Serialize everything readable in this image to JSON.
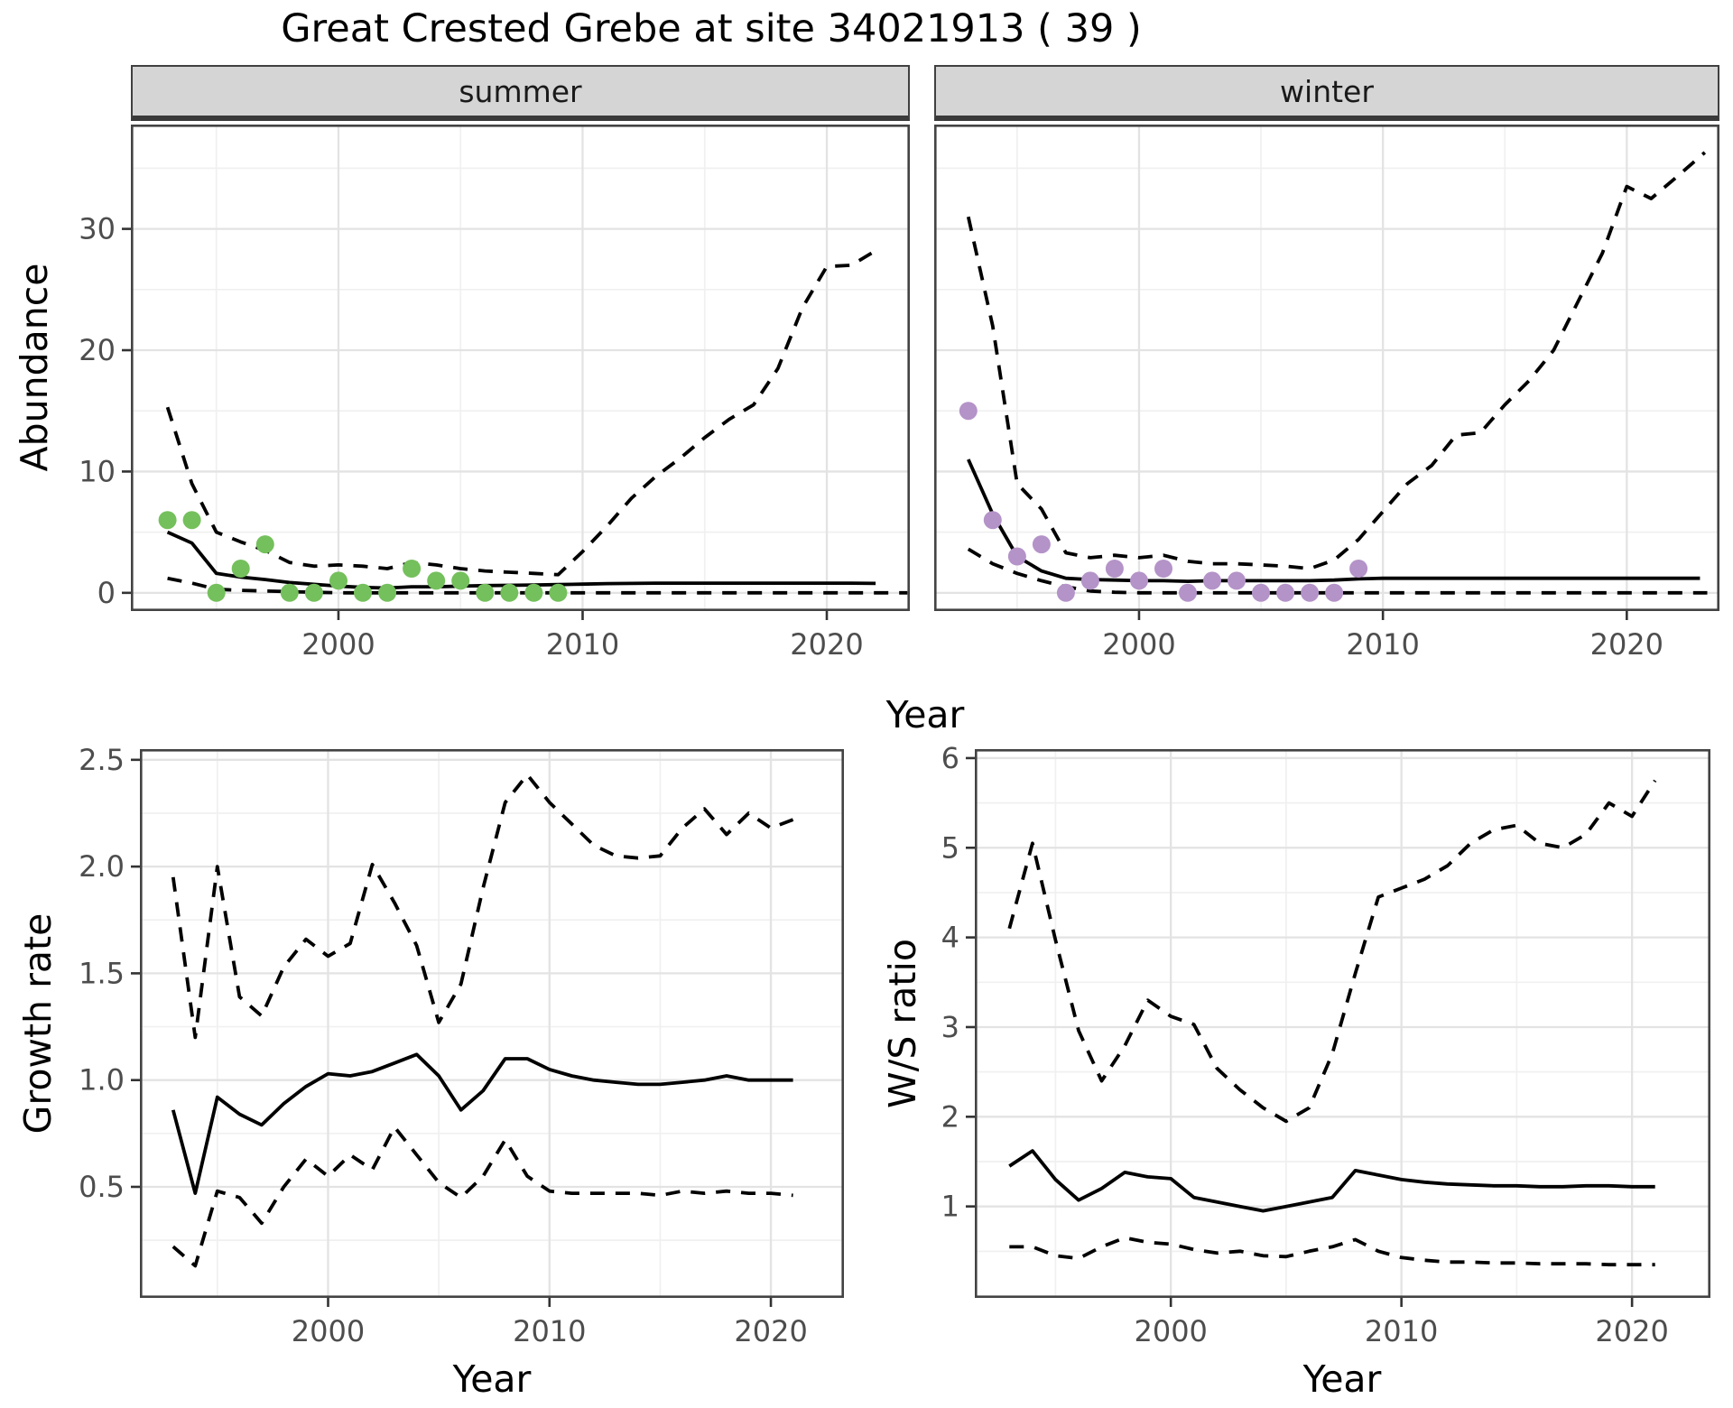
{
  "title": "Great Crested Grebe at site 34021913 ( 39 )",
  "axis_labels": {
    "abundance": "Abundance",
    "year": "Year",
    "growth": "Growth rate",
    "ws": "W/S ratio"
  },
  "facets": {
    "summer": "summer",
    "winter": "winter"
  },
  "colors": {
    "summer_points": "#74c05c",
    "winter_points": "#b493c8",
    "line": "#000000",
    "grid_major": "#e3e3e3",
    "grid_minor": "#f0f0f0",
    "strip_bg": "#d5d5d5",
    "border": "#434343",
    "tick_text": "#4d4d4d"
  },
  "chart_data": [
    {
      "id": "summer",
      "type": "line",
      "facet": "summer",
      "xlabel": "Year",
      "ylabel": "Abundance",
      "x_range": [
        1991.5,
        2023.4
      ],
      "y_range": [
        -1.5,
        38.6
      ],
      "x_ticks": [
        2000,
        2010,
        2020
      ],
      "x_tick_labels": [
        "2000",
        "2010",
        "2020"
      ],
      "x_minor": [
        1995,
        2005,
        2015
      ],
      "y_ticks": [
        0,
        10,
        20,
        30
      ],
      "y_tick_labels": [
        "0",
        "10",
        "20",
        "30"
      ],
      "y_minor": [
        5,
        15,
        25,
        35
      ],
      "series": [
        {
          "name": "upper-ci",
          "type": "line",
          "dashed": true,
          "color": "#000000",
          "x": [
            1993,
            1994,
            1995,
            1996,
            1997,
            1998,
            1999,
            2000,
            2001,
            2002,
            2003,
            2004,
            2005,
            2006,
            2007,
            2008,
            2009,
            2010,
            2011,
            2012,
            2013,
            2014,
            2015,
            2016,
            2017,
            2018,
            2019,
            2020,
            2021,
            2022
          ],
          "y": [
            15.3,
            9.0,
            5.0,
            4.2,
            3.5,
            2.5,
            2.2,
            2.3,
            2.2,
            2.0,
            2.5,
            2.3,
            2.0,
            1.8,
            1.7,
            1.6,
            1.5,
            3.4,
            5.5,
            7.8,
            9.6,
            11.1,
            12.8,
            14.3,
            15.5,
            18.5,
            23.5,
            26.9,
            27.0,
            28.2
          ]
        },
        {
          "name": "lower-ci",
          "type": "line",
          "dashed": true,
          "color": "#000000",
          "x": [
            1993,
            1994,
            1995,
            1996,
            1997,
            1998,
            1999,
            2000,
            2001,
            2002,
            2003,
            2004,
            2005,
            2006,
            2007,
            2008,
            2009,
            2010,
            2011,
            2012,
            2013,
            2014,
            2015,
            2016,
            2017,
            2018,
            2019,
            2020,
            2021,
            2022,
            2023.3
          ],
          "y": [
            1.2,
            0.8,
            0.3,
            0.2,
            0.15,
            0.1,
            0.05,
            0,
            0,
            0,
            0,
            0,
            0,
            0,
            0,
            0,
            0,
            0,
            0,
            0,
            0,
            0,
            0,
            0,
            0,
            0,
            0,
            0,
            0,
            0,
            0
          ]
        },
        {
          "name": "fitted",
          "type": "line",
          "dashed": false,
          "color": "#000000",
          "x": [
            1993,
            1994,
            1995,
            1996,
            1997,
            1998,
            1999,
            2000,
            2001,
            2002,
            2003,
            2004,
            2005,
            2006,
            2007,
            2008,
            2009,
            2010,
            2011,
            2012,
            2013,
            2014,
            2015,
            2016,
            2017,
            2018,
            2019,
            2020,
            2021,
            2022
          ],
          "y": [
            5.0,
            4.1,
            1.6,
            1.3,
            1.1,
            0.85,
            0.7,
            0.55,
            0.45,
            0.4,
            0.5,
            0.5,
            0.55,
            0.6,
            0.62,
            0.65,
            0.68,
            0.72,
            0.76,
            0.78,
            0.8,
            0.8,
            0.8,
            0.8,
            0.8,
            0.8,
            0.8,
            0.8,
            0.8,
            0.78
          ]
        },
        {
          "name": "observed",
          "type": "points",
          "color": "#74c05c",
          "x": [
            1993,
            1994,
            1995,
            1996,
            1997,
            1998,
            1999,
            2000,
            2001,
            2002,
            2003,
            2004,
            2005,
            2006,
            2007,
            2008,
            2009
          ],
          "y": [
            6,
            6,
            0,
            2,
            4,
            0,
            0,
            1,
            0,
            0,
            2,
            1,
            1,
            0,
            0,
            0,
            0
          ]
        }
      ]
    },
    {
      "id": "winter",
      "type": "line",
      "facet": "winter",
      "xlabel": "Year",
      "ylabel": "Abundance",
      "x_range": [
        1991.6,
        2023.8
      ],
      "y_range": [
        -1.5,
        38.6
      ],
      "x_ticks": [
        2000,
        2010,
        2020
      ],
      "x_tick_labels": [
        "2000",
        "2010",
        "2020"
      ],
      "x_minor": [
        1995,
        2005,
        2015
      ],
      "y_ticks": [
        0,
        10,
        20,
        30
      ],
      "y_tick_labels": [],
      "y_minor": [
        5,
        15,
        25,
        35
      ],
      "series": [
        {
          "name": "upper-ci",
          "type": "line",
          "dashed": true,
          "color": "#000000",
          "x": [
            1993,
            1994,
            1995,
            1996,
            1997,
            1998,
            1999,
            2000,
            2001,
            2002,
            2003,
            2004,
            2005,
            2006,
            2007,
            2008,
            2009,
            2010,
            2011,
            2012,
            2013,
            2014,
            2015,
            2016,
            2017,
            2018,
            2019,
            2020,
            2021,
            2022,
            2023.2
          ],
          "y": [
            31,
            22,
            9,
            6.9,
            3.3,
            2.9,
            3.1,
            2.9,
            3.1,
            2.6,
            2.4,
            2.4,
            2.3,
            2.2,
            2.0,
            2.7,
            4.4,
            6.7,
            9.0,
            10.5,
            13.0,
            13.2,
            15.5,
            17.5,
            20.0,
            24.0,
            28.0,
            33.5,
            32.5,
            34.2,
            36.3
          ]
        },
        {
          "name": "lower-ci",
          "type": "line",
          "dashed": true,
          "color": "#000000",
          "x": [
            1993,
            1994,
            1995,
            1996,
            1997,
            1998,
            1999,
            2000,
            2001,
            2002,
            2003,
            2004,
            2005,
            2006,
            2007,
            2008,
            2009,
            2010,
            2011,
            2012,
            2013,
            2014,
            2015,
            2016,
            2017,
            2018,
            2019,
            2020,
            2021,
            2022,
            2023.3
          ],
          "y": [
            3.6,
            2.4,
            1.6,
            1.0,
            0.5,
            0.15,
            0.05,
            0,
            0,
            0,
            0,
            0,
            0,
            0,
            0,
            0,
            0,
            0,
            0,
            0,
            0,
            0,
            0,
            0,
            0,
            0,
            0,
            0,
            0,
            0,
            0
          ]
        },
        {
          "name": "fitted",
          "type": "line",
          "dashed": false,
          "color": "#000000",
          "x": [
            1993,
            1994,
            1995,
            1996,
            1997,
            1998,
            1999,
            2000,
            2001,
            2002,
            2003,
            2004,
            2005,
            2006,
            2007,
            2008,
            2009,
            2010,
            2011,
            2012,
            2013,
            2014,
            2015,
            2016,
            2017,
            2018,
            2019,
            2020,
            2021,
            2022,
            2023
          ],
          "y": [
            11,
            6.5,
            3.0,
            1.8,
            1.2,
            1.1,
            1.05,
            1.0,
            1.0,
            0.95,
            1.0,
            1.0,
            1.0,
            1.0,
            1.0,
            1.05,
            1.15,
            1.2,
            1.2,
            1.2,
            1.2,
            1.2,
            1.2,
            1.2,
            1.2,
            1.2,
            1.2,
            1.2,
            1.2,
            1.2,
            1.2
          ]
        },
        {
          "name": "observed",
          "type": "points",
          "color": "#b493c8",
          "x": [
            1993,
            1994,
            1995,
            1996,
            1997,
            1998,
            1999,
            2000,
            2001,
            2002,
            2003,
            2004,
            2005,
            2006,
            2007,
            2008,
            2009
          ],
          "y": [
            15,
            6,
            3,
            4,
            0,
            1,
            2,
            1,
            2,
            0,
            1,
            1,
            0,
            0,
            0,
            0,
            2
          ]
        }
      ]
    },
    {
      "id": "growth",
      "type": "line",
      "facet": null,
      "xlabel": "Year",
      "ylabel": "Growth rate",
      "x_range": [
        1991.5,
        2023.3
      ],
      "y_range": [
        -0.02,
        2.55
      ],
      "x_ticks": [
        2000,
        2010,
        2020
      ],
      "x_tick_labels": [
        "2000",
        "2010",
        "2020"
      ],
      "x_minor": [
        1995,
        2005,
        2015
      ],
      "y_ticks": [
        0.5,
        1.0,
        1.5,
        2.0,
        2.5
      ],
      "y_tick_labels": [
        "0.5",
        "1.0",
        "1.5",
        "2.0",
        "2.5"
      ],
      "y_minor": [
        0.25,
        0.75,
        1.25,
        1.75,
        2.25
      ],
      "series": [
        {
          "name": "upper-ci",
          "type": "line",
          "dashed": true,
          "color": "#000000",
          "x": [
            1993,
            1994,
            1995,
            1996,
            1997,
            1998,
            1999,
            2000,
            2001,
            2002,
            2003,
            2004,
            2005,
            2006,
            2007,
            2008,
            2009,
            2010,
            2011,
            2012,
            2013,
            2014,
            2015,
            2016,
            2017,
            2018,
            2019,
            2020,
            2021
          ],
          "y": [
            1.95,
            1.2,
            2.0,
            1.39,
            1.3,
            1.53,
            1.66,
            1.58,
            1.64,
            2.01,
            1.83,
            1.63,
            1.27,
            1.45,
            1.9,
            2.3,
            2.43,
            2.3,
            2.2,
            2.1,
            2.05,
            2.04,
            2.05,
            2.18,
            2.27,
            2.15,
            2.25,
            2.18,
            2.22
          ]
        },
        {
          "name": "lower-ci",
          "type": "line",
          "dashed": true,
          "color": "#000000",
          "x": [
            1993,
            1994,
            1995,
            1996,
            1997,
            1998,
            1999,
            2000,
            2001,
            2002,
            2003,
            2004,
            2005,
            2006,
            2007,
            2008,
            2009,
            2010,
            2011,
            2012,
            2013,
            2014,
            2015,
            2016,
            2017,
            2018,
            2019,
            2020,
            2021
          ],
          "y": [
            0.22,
            0.13,
            0.48,
            0.45,
            0.33,
            0.5,
            0.63,
            0.55,
            0.65,
            0.58,
            0.78,
            0.65,
            0.52,
            0.45,
            0.55,
            0.72,
            0.55,
            0.48,
            0.47,
            0.47,
            0.47,
            0.47,
            0.46,
            0.48,
            0.47,
            0.48,
            0.47,
            0.47,
            0.46
          ]
        },
        {
          "name": "fitted",
          "type": "line",
          "dashed": false,
          "color": "#000000",
          "x": [
            1993,
            1994,
            1995,
            1996,
            1997,
            1998,
            1999,
            2000,
            2001,
            2002,
            2003,
            2004,
            2005,
            2006,
            2007,
            2008,
            2009,
            2010,
            2011,
            2012,
            2013,
            2014,
            2015,
            2016,
            2017,
            2018,
            2019,
            2020,
            2021
          ],
          "y": [
            0.86,
            0.47,
            0.92,
            0.84,
            0.79,
            0.89,
            0.97,
            1.03,
            1.02,
            1.04,
            1.08,
            1.12,
            1.02,
            0.86,
            0.95,
            1.1,
            1.1,
            1.05,
            1.02,
            1.0,
            0.99,
            0.98,
            0.98,
            0.99,
            1.0,
            1.02,
            1.0,
            1.0,
            1.0
          ]
        }
      ]
    },
    {
      "id": "ws",
      "type": "line",
      "facet": null,
      "xlabel": "Year",
      "ylabel": "W/S ratio",
      "x_range": [
        1991.5,
        2023.4
      ],
      "y_range": [
        -0.02,
        6.1
      ],
      "x_ticks": [
        2000,
        2010,
        2020
      ],
      "x_tick_labels": [
        "2000",
        "2010",
        "2020"
      ],
      "x_minor": [
        1995,
        2005,
        2015
      ],
      "y_ticks": [
        1,
        2,
        3,
        4,
        5,
        6
      ],
      "y_tick_labels": [
        "1",
        "2",
        "3",
        "4",
        "5",
        "6"
      ],
      "y_minor": [
        0.5,
        1.5,
        2.5,
        3.5,
        4.5,
        5.5
      ],
      "series": [
        {
          "name": "upper-ci",
          "type": "line",
          "dashed": true,
          "color": "#000000",
          "x": [
            1993,
            1994,
            1995,
            1996,
            1997,
            1998,
            1999,
            2000,
            2001,
            2002,
            2003,
            2004,
            2005,
            2006,
            2007,
            2008,
            2009,
            2010,
            2011,
            2012,
            2013,
            2014,
            2015,
            2016,
            2017,
            2018,
            2019,
            2020,
            2021
          ],
          "y": [
            4.1,
            5.05,
            3.97,
            2.96,
            2.4,
            2.79,
            3.3,
            3.12,
            3.03,
            2.54,
            2.3,
            2.1,
            1.95,
            2.1,
            2.7,
            3.6,
            4.45,
            4.55,
            4.65,
            4.8,
            5.05,
            5.2,
            5.25,
            5.05,
            5.0,
            5.15,
            5.5,
            5.35,
            5.75
          ]
        },
        {
          "name": "lower-ci",
          "type": "line",
          "dashed": true,
          "color": "#000000",
          "x": [
            1993,
            1994,
            1995,
            1996,
            1997,
            1998,
            1999,
            2000,
            2001,
            2002,
            2003,
            2004,
            2005,
            2006,
            2007,
            2008,
            2009,
            2010,
            2011,
            2012,
            2013,
            2014,
            2015,
            2016,
            2017,
            2018,
            2019,
            2020,
            2021
          ],
          "y": [
            0.55,
            0.55,
            0.45,
            0.42,
            0.55,
            0.65,
            0.6,
            0.58,
            0.52,
            0.48,
            0.5,
            0.45,
            0.44,
            0.5,
            0.55,
            0.63,
            0.5,
            0.43,
            0.4,
            0.38,
            0.38,
            0.37,
            0.37,
            0.36,
            0.36,
            0.36,
            0.35,
            0.35,
            0.35
          ]
        },
        {
          "name": "fitted",
          "type": "line",
          "dashed": false,
          "color": "#000000",
          "x": [
            1993,
            1994,
            1995,
            1996,
            1997,
            1998,
            1999,
            2000,
            2001,
            2002,
            2003,
            2004,
            2005,
            2006,
            2007,
            2008,
            2009,
            2010,
            2011,
            2012,
            2013,
            2014,
            2015,
            2016,
            2017,
            2018,
            2019,
            2020,
            2021
          ],
          "y": [
            1.45,
            1.62,
            1.3,
            1.07,
            1.2,
            1.38,
            1.33,
            1.31,
            1.1,
            1.05,
            1.0,
            0.95,
            1.0,
            1.05,
            1.1,
            1.4,
            1.35,
            1.3,
            1.27,
            1.25,
            1.24,
            1.23,
            1.23,
            1.22,
            1.22,
            1.23,
            1.23,
            1.22,
            1.22
          ]
        }
      ]
    }
  ]
}
